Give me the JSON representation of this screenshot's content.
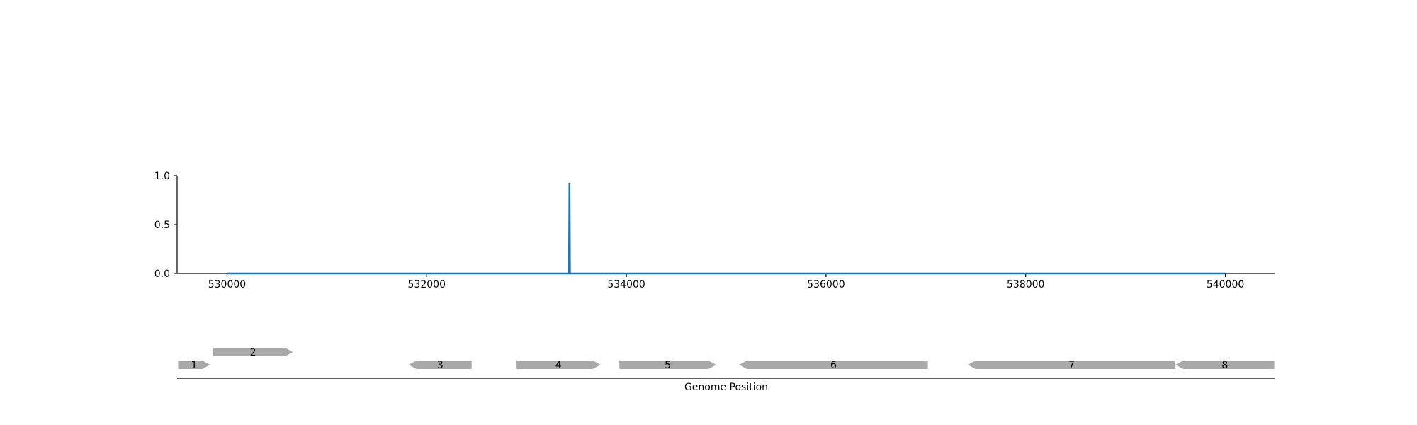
{
  "chart_data": [
    {
      "type": "line",
      "title": "",
      "xlabel": "",
      "ylabel": "",
      "xlim": [
        529500,
        540500
      ],
      "ylim": [
        0,
        1.0
      ],
      "x_ticks": [
        530000,
        532000,
        534000,
        536000,
        538000,
        540000
      ],
      "x_tick_labels": [
        "530000",
        "532000",
        "534000",
        "536000",
        "538000",
        "540000"
      ],
      "y_ticks": [
        0,
        0.5,
        1.0
      ],
      "y_tick_labels": [
        "0.0",
        "0.5",
        "1.0"
      ],
      "grid": false,
      "line_color": "#1f77b4",
      "series": [
        {
          "x": [
            530000,
            533425,
            533430,
            533435,
            540000
          ],
          "y": [
            0,
            0,
            0.92,
            0,
            0
          ]
        }
      ]
    },
    {
      "type": "gene-track",
      "xlabel": "Genome Position",
      "xlim": [
        529500,
        540500
      ],
      "gene_color": "#a9a9a9",
      "genes": [
        {
          "label": "1",
          "start": 529510,
          "end": 529830,
          "strand": "+",
          "row": 0
        },
        {
          "label": "2",
          "start": 529860,
          "end": 530660,
          "strand": "+",
          "row": 1
        },
        {
          "label": "3",
          "start": 531820,
          "end": 532450,
          "strand": "-",
          "row": 0
        },
        {
          "label": "4",
          "start": 532900,
          "end": 533740,
          "strand": "+",
          "row": 0
        },
        {
          "label": "5",
          "start": 533930,
          "end": 534900,
          "strand": "+",
          "row": 0
        },
        {
          "label": "6",
          "start": 535130,
          "end": 537020,
          "strand": "-",
          "row": 0
        },
        {
          "label": "7",
          "start": 537420,
          "end": 539500,
          "strand": "-",
          "row": 0
        },
        {
          "label": "8",
          "start": 539500,
          "end": 540490,
          "strand": "-",
          "row": 0
        }
      ]
    }
  ]
}
